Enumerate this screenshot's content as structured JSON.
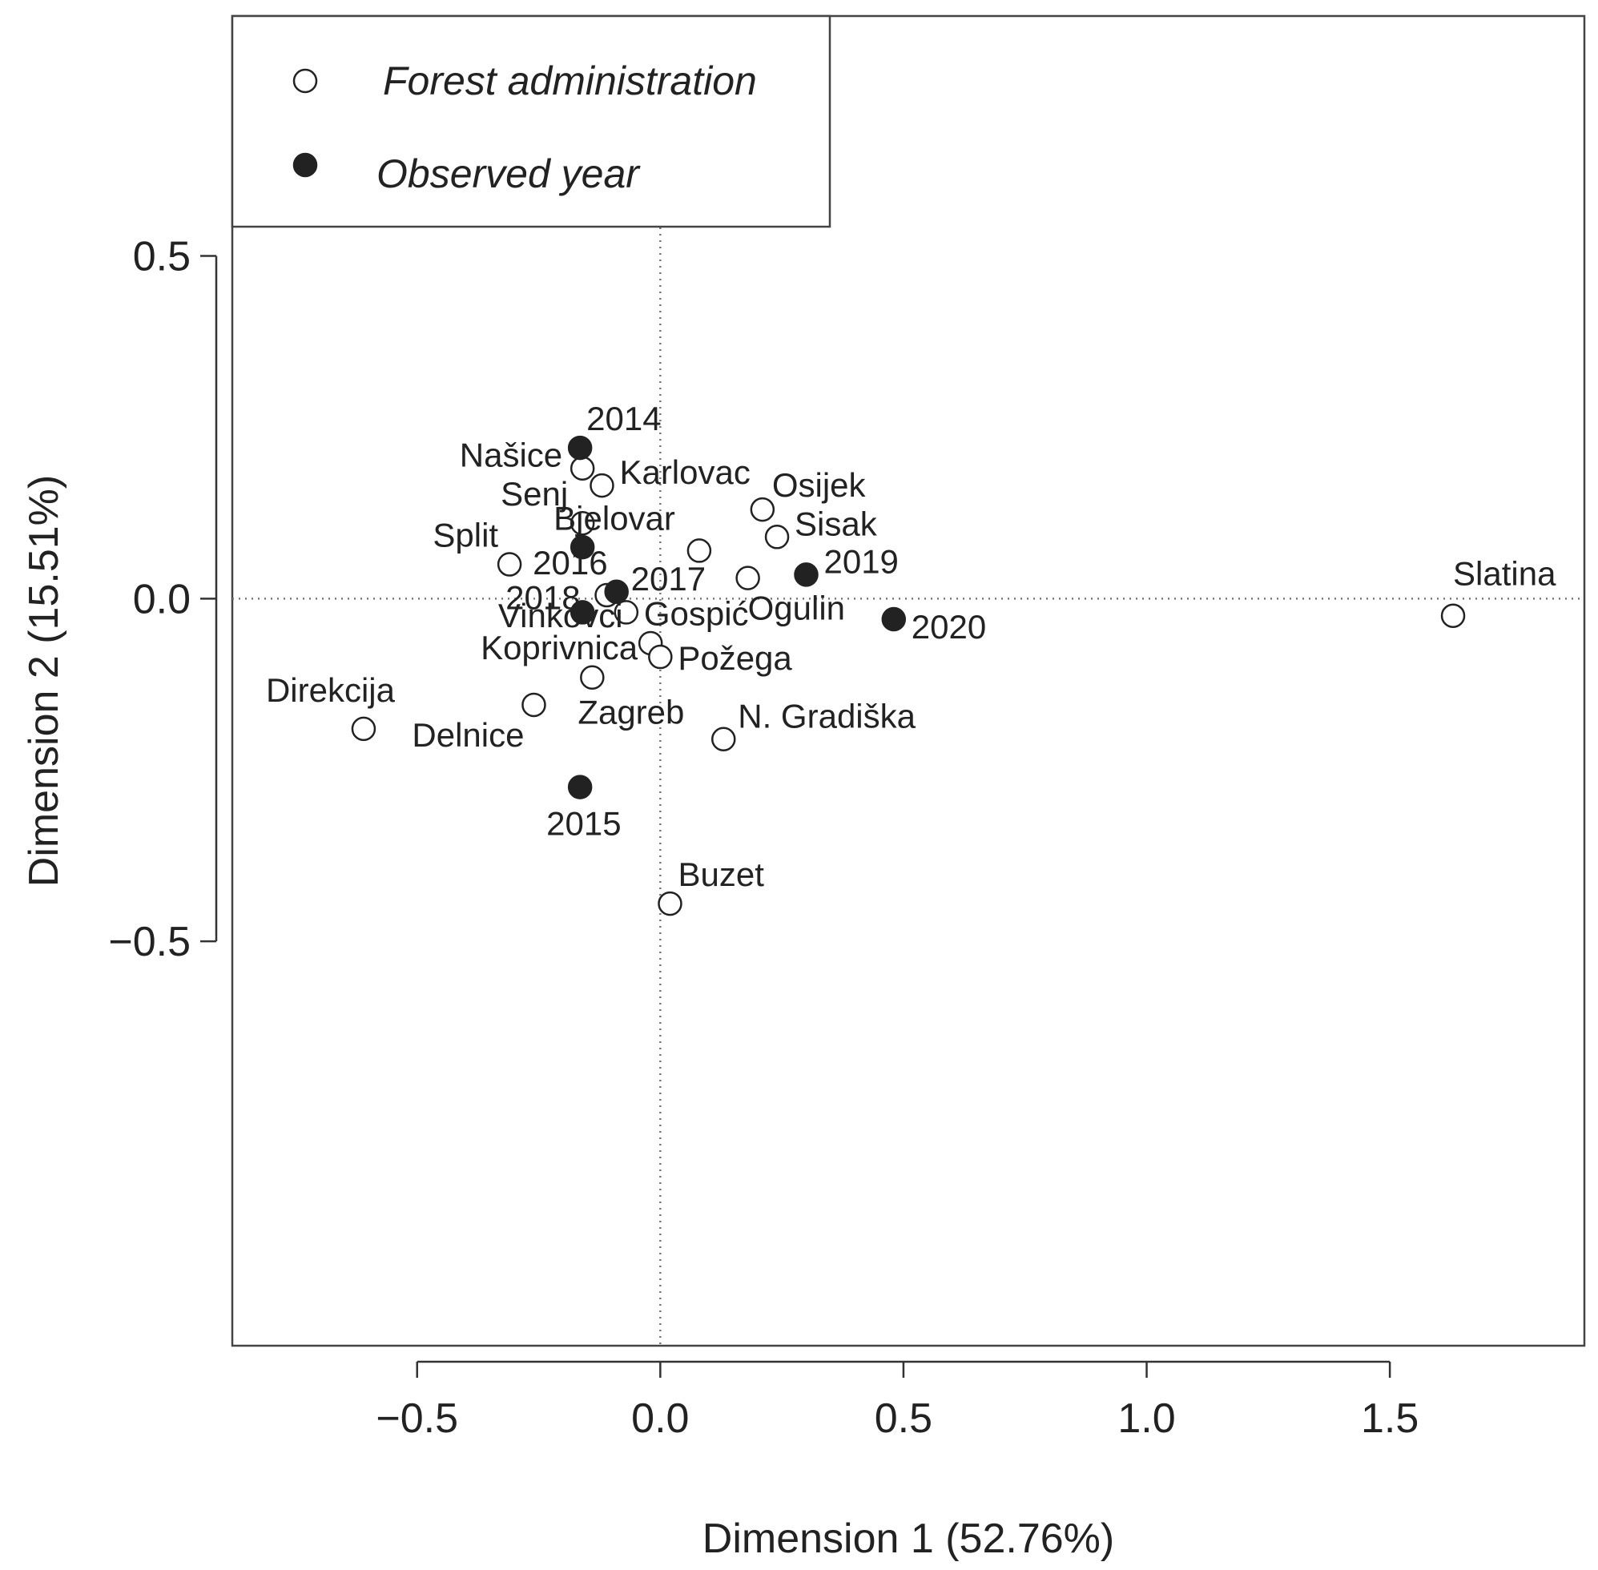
{
  "chart_data": {
    "type": "scatter",
    "title": "",
    "xlabel": "Dimension 1 (52.76%)",
    "ylabel": "Dimension 2 (15.51%)",
    "xlim": [
      -0.88,
      1.9
    ],
    "ylim": [
      -1.09,
      0.85
    ],
    "x_ticks": [
      -0.5,
      0.0,
      0.5,
      1.0,
      1.5
    ],
    "x_tick_labels": [
      "−0.5",
      "0.0",
      "0.5",
      "1.0",
      "1.5"
    ],
    "y_ticks": [
      -0.5,
      0.0,
      0.5
    ],
    "y_tick_labels": [
      "−0.5",
      "0.0",
      "0.5"
    ],
    "grid": false,
    "reference_lines": {
      "x": 0.0,
      "y": 0.0,
      "style": "dotted"
    },
    "legend": {
      "position": "top-left",
      "entries": [
        {
          "label": "Forest administration",
          "marker": "open-circle"
        },
        {
          "label": "Observed year",
          "marker": "filled-circle"
        }
      ]
    },
    "series": [
      {
        "name": "Forest administration",
        "marker": "open-circle",
        "points": [
          {
            "label": "Našice",
            "x": -0.16,
            "y": 0.19
          },
          {
            "label": "Karlovac",
            "x": -0.12,
            "y": 0.165
          },
          {
            "label": "Osijek",
            "x": 0.21,
            "y": 0.13
          },
          {
            "label": "Senj",
            "x": -0.16,
            "y": 0.11
          },
          {
            "label": "Sisak",
            "x": 0.24,
            "y": 0.09
          },
          {
            "label": "Bjelovar",
            "x": 0.08,
            "y": 0.07
          },
          {
            "label": "Split",
            "x": -0.31,
            "y": 0.05
          },
          {
            "label": "Ogulin",
            "x": 0.18,
            "y": 0.03
          },
          {
            "label": "Gospić",
            "x": -0.07,
            "y": -0.02
          },
          {
            "label": "Vinkovci",
            "x": -0.11,
            "y": 0.005
          },
          {
            "label": "Koprivnica",
            "x": -0.02,
            "y": -0.065
          },
          {
            "label": "Požega",
            "x": 0.0,
            "y": -0.085
          },
          {
            "label": "Zagreb",
            "x": -0.14,
            "y": -0.115
          },
          {
            "label": "Delnice",
            "x": -0.26,
            "y": -0.155
          },
          {
            "label": "Direkcija",
            "x": -0.61,
            "y": -0.19
          },
          {
            "label": "N. Gradiška",
            "x": 0.13,
            "y": -0.205
          },
          {
            "label": "Buzet",
            "x": 0.02,
            "y": -0.445
          },
          {
            "label": "Slatina",
            "x": 1.63,
            "y": -0.025
          }
        ]
      },
      {
        "name": "Observed year",
        "marker": "filled-circle",
        "points": [
          {
            "label": "2014",
            "x": -0.165,
            "y": 0.22
          },
          {
            "label": "2016",
            "x": -0.16,
            "y": 0.075
          },
          {
            "label": "2017",
            "x": -0.09,
            "y": 0.01
          },
          {
            "label": "2018",
            "x": -0.16,
            "y": -0.02
          },
          {
            "label": "2019",
            "x": 0.3,
            "y": 0.035
          },
          {
            "label": "2020",
            "x": 0.48,
            "y": -0.03
          },
          {
            "label": "2015",
            "x": -0.165,
            "y": -0.275
          }
        ]
      }
    ]
  }
}
